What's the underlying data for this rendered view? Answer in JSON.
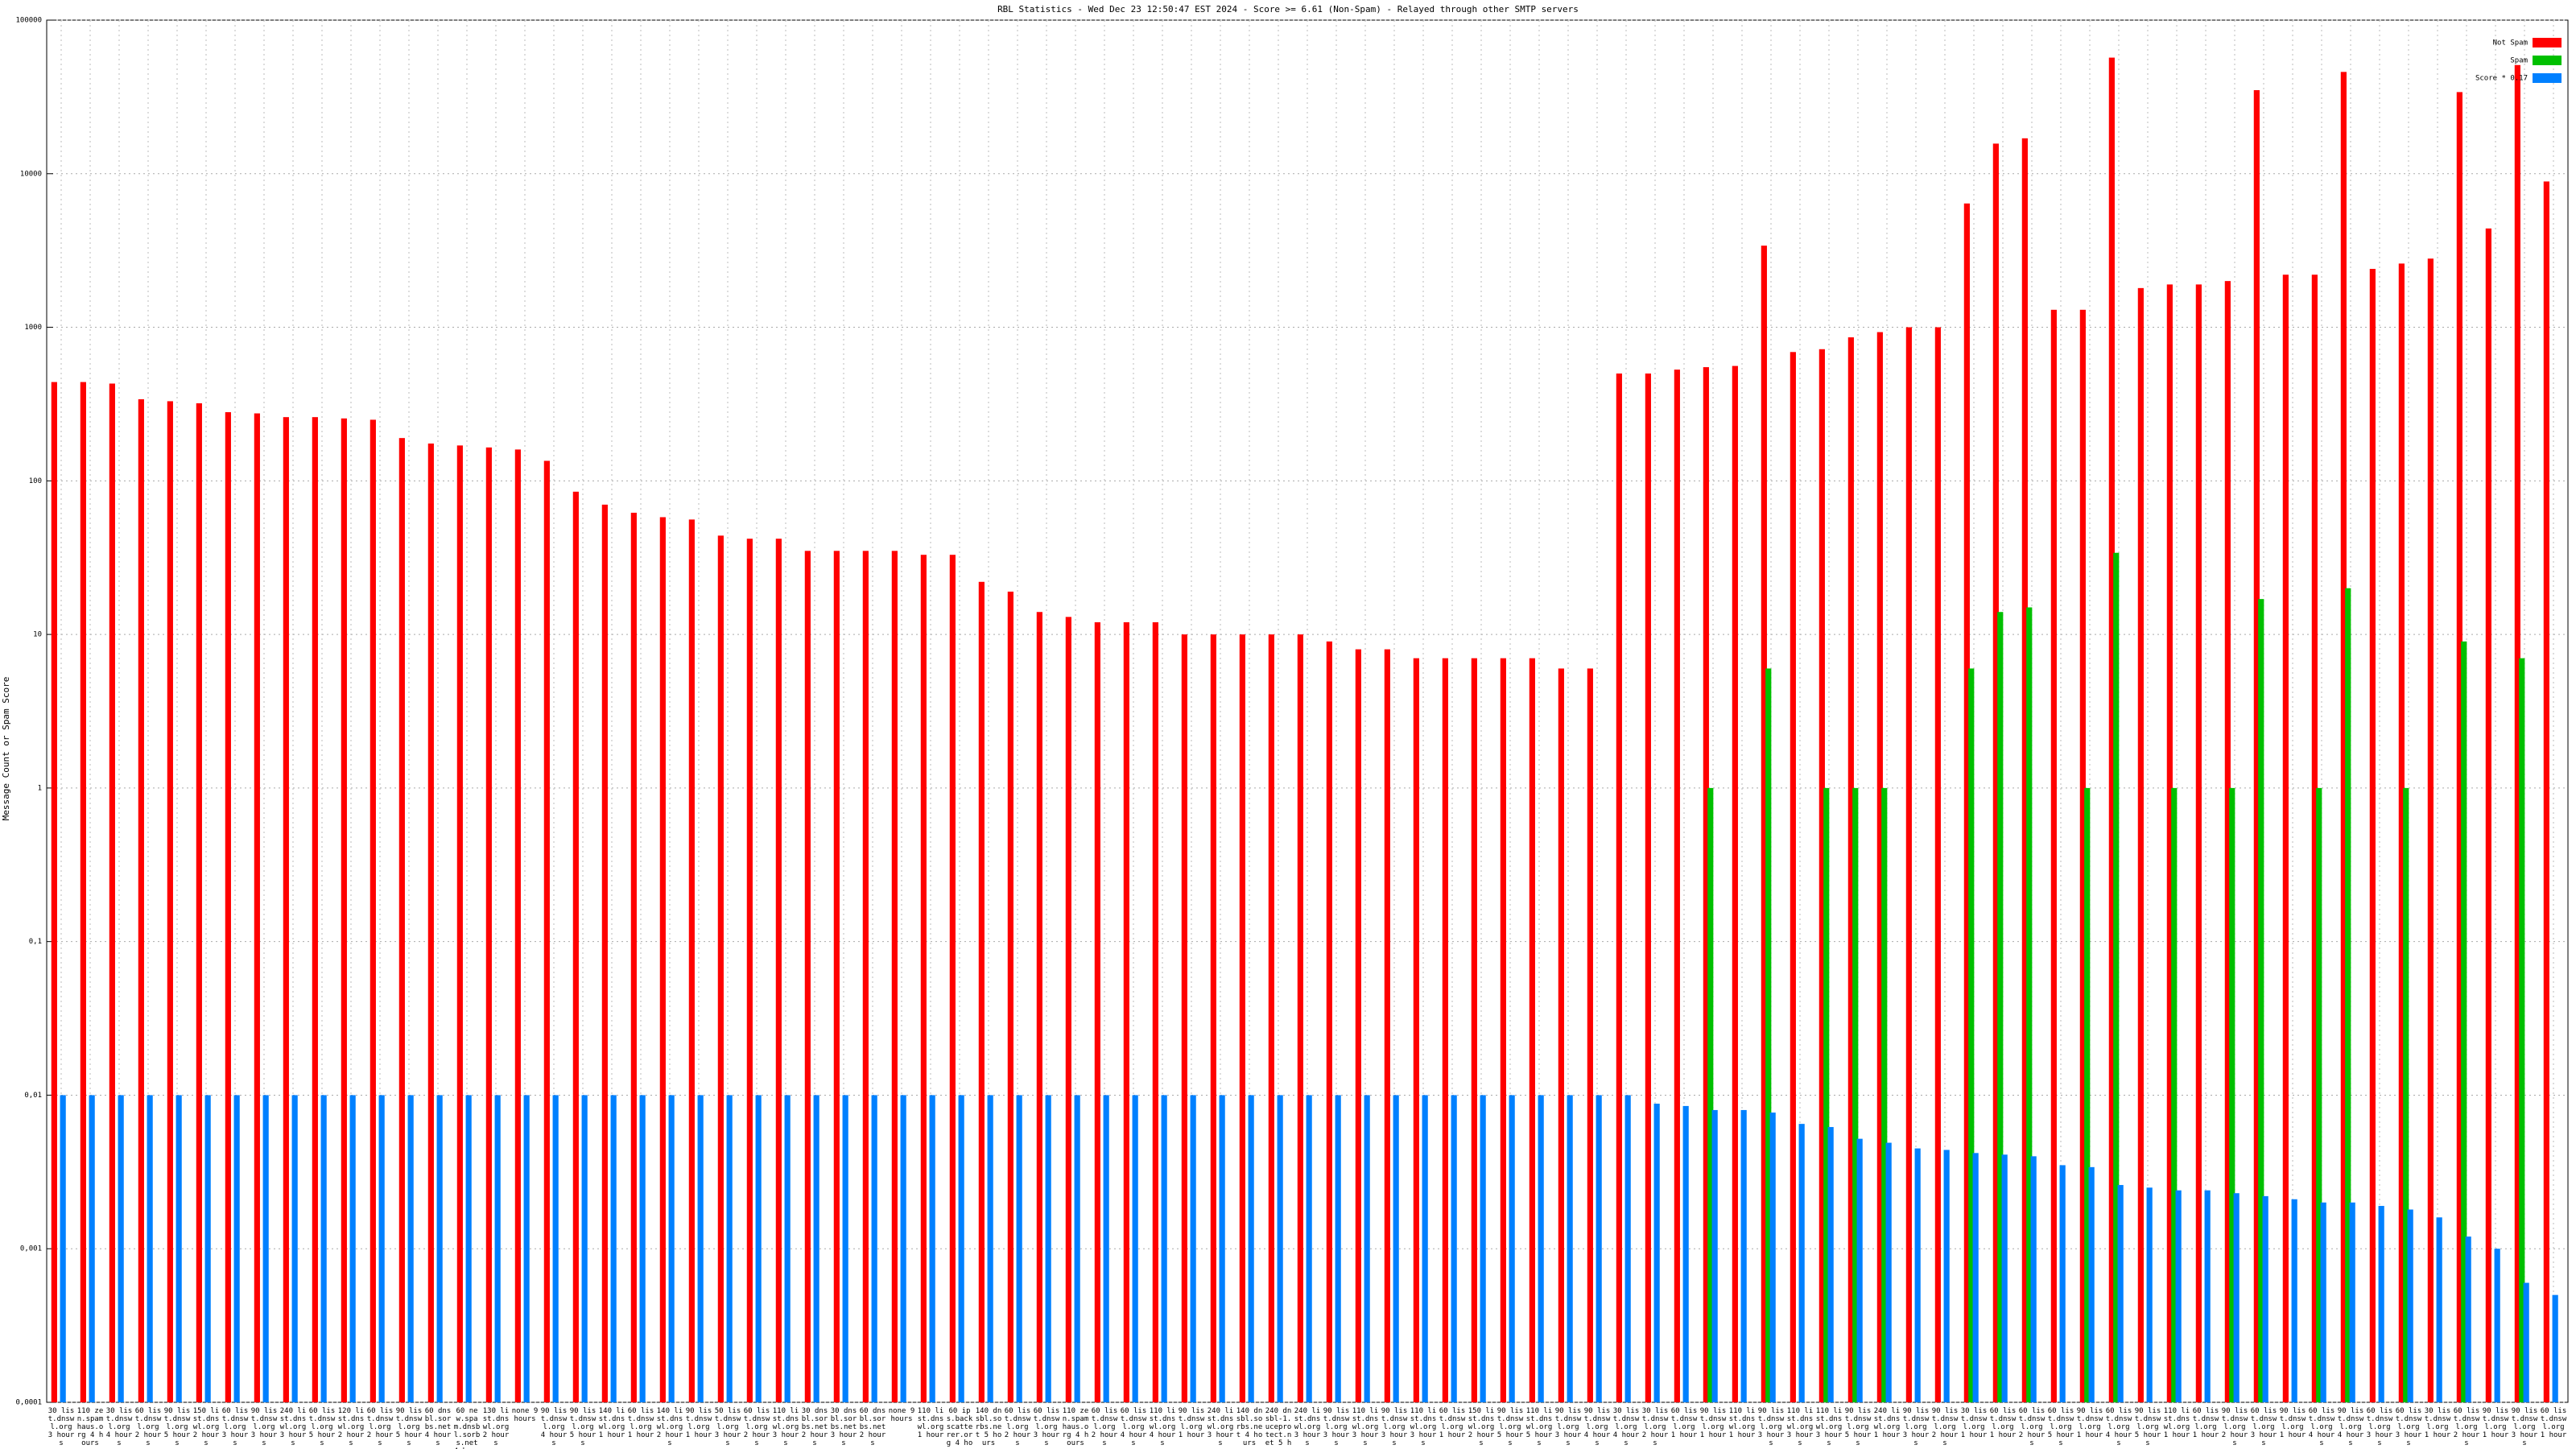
{
  "chart_data": {
    "type": "bar",
    "title": "RBL Statistics - Wed Dec 23 12:50:47 EST 2024 - Score >= 6.61 (Non-Spam) - Relayed through other SMTP servers",
    "y_label": "Message Count or Spam Score",
    "log_scale": true,
    "grid": true,
    "legend": "top-right",
    "ylim": [
      0.0001,
      100000
    ],
    "yticks": [
      {
        "value": 0.0001,
        "label": "0,0001"
      },
      {
        "value": 0.001,
        "label": "0,001"
      },
      {
        "value": 0.01,
        "label": "0,01"
      },
      {
        "value": 0.1,
        "label": "0,1"
      },
      1,
      10,
      100,
      1000,
      10000,
      100000
    ],
    "categories": [
      "30 list.dnswl.org 3 hours",
      "110 zen.spamhaus.org 4 hours",
      "30 list.dnswl.org 4 hours",
      "60 list.dnswl.org 2 hours",
      "90 list.dnswl.org 5 hours",
      "150 list.dnswl.org 2 hours",
      "60 list.dnswl.org 3 hours",
      "90 list.dnswl.org 3 hours",
      "240 list.dnswl.org 3 hours",
      "60 list.dnswl.org 5 hours",
      "120 list.dnswl.org 2 hours",
      "60 list.dnswl.org 2 hours",
      "90 list.dnswl.org 5 hours",
      "60 dnsbl.sorbs.net 4 hours",
      "60 new.spam.dnsbl.sorbs.net 4 hours",
      "130 list.dnswl.org 2 hours",
      "none 9 hours",
      "90 list.dnswl.org 4 hours",
      "90 list.dnswl.org 5 hours",
      "140 list.dnswl.org 1 hour",
      "60 list.dnswl.org 1 hour",
      "140 list.dnswl.org 2 hours",
      "90 list.dnswl.org 1 hour",
      "50 list.dnswl.org 3 hours",
      "60 list.dnswl.org 2 hours",
      "110 list.dnswl.org 3 hours",
      "30 dnsbl.sorbs.net 2 hours",
      "30 dnsbl.sorbs.net 3 hours",
      "60 dnsbl.sorbs.net 2 hours",
      "none 9 hours",
      "110 list.dnswl.org 1 hour",
      "60 ips.backscatterer.org 4 hours",
      "140 dnsbl.sorbs.net 5 hours",
      "60 list.dnswl.org 2 hours",
      "60 list.dnswl.org 3 hours",
      "110 zen.spamhaus.org 4 hours",
      "60 list.dnswl.org 2 hours",
      "60 list.dnswl.org 4 hours",
      "110 list.dnswl.org 4 hours",
      "90 list.dnswl.org 1 hour",
      "240 list.dnswl.org 3 hours",
      "140 dnsbl.sorbs.net 4 hours",
      "240 dnsbl-1.uceprotect.net 5 hours",
      "240 list.dnswl.org 3 hours",
      "90 list.dnswl.org 3 hours",
      "110 list.dnswl.org 3 hours",
      "90 list.dnswl.org 3 hours",
      "110 list.dnswl.org 3 hours",
      "60 list.dnswl.org 1 hour",
      "150 list.dnswl.org 2 hours",
      "90 list.dnswl.org 5 hours",
      "110 list.dnswl.org 5 hours",
      "90 list.dnswl.org 3 hours",
      "90 list.dnswl.org 4 hours",
      "30 list.dnswl.org 4 hours",
      "30 list.dnswl.org 2 hours",
      "60 list.dnswl.org 1 hour",
      "90 list.dnswl.org 1 hour",
      "110 list.dnswl.org 1 hour",
      "90 list.dnswl.org 3 hours",
      "110 list.dnswl.org 3 hours",
      "110 list.dnswl.org 3 hours",
      "90 list.dnswl.org 5 hours",
      "240 list.dnswl.org 1 hour",
      "90 list.dnswl.org 3 hours",
      "90 list.dnswl.org 2 hours",
      "30 list.dnswl.org 1 hour",
      "60 list.dnswl.org 1 hour",
      "60 list.dnswl.org 2 hours",
      "60 list.dnswl.org 5 hours",
      "90 list.dnswl.org 1 hour",
      "60 list.dnswl.org 4 hours",
      "90 list.dnswl.org 5 hours",
      "110 list.dnswl.org 1 hour",
      "60 list.dnswl.org 1 hour",
      "90 list.dnswl.org 2 hours",
      "60 list.dnswl.org 3 hours",
      "90 list.dnswl.org 1 hour",
      "60 list.dnswl.org 4 hours",
      "90 list.dnswl.org 4 hours",
      "60 list.dnswl.org 3 hours",
      "60 list.dnswl.org 3 hours",
      "30 list.dnswl.org 1 hour",
      "60 list.dnswl.org 2 hours",
      "90 list.dnswl.org 1 hour",
      "90 list.dnswl.org 3 hours",
      "60 list.dnswl.org 1 hour"
    ],
    "series": [
      {
        "name": "Not Spam",
        "color": "#ff0000",
        "values": [
          440,
          440,
          430,
          340,
          330,
          320,
          280,
          275,
          260,
          260,
          255,
          250,
          190,
          175,
          170,
          165,
          160,
          135,
          85,
          70,
          62,
          58,
          56,
          44,
          42,
          42,
          35,
          35,
          35,
          35,
          33,
          33,
          22,
          19,
          14,
          13,
          12,
          12,
          12,
          10,
          10,
          10,
          10,
          10,
          9,
          8,
          8,
          7,
          7,
          7,
          7,
          7,
          6,
          6,
          500,
          500,
          530,
          550,
          560,
          3400,
          690,
          720,
          860,
          930,
          1000,
          1000,
          6400,
          15700,
          17000,
          1300,
          1300,
          57000,
          1800,
          1900,
          1900,
          2000,
          35000,
          2200,
          2200,
          46000,
          2400,
          2600,
          2800,
          34000,
          4400,
          51000,
          8900
        ]
      },
      {
        "name": "Spam",
        "color": "#00c000",
        "values": [
          null,
          null,
          null,
          null,
          null,
          null,
          null,
          null,
          null,
          null,
          null,
          null,
          null,
          null,
          null,
          null,
          null,
          null,
          null,
          null,
          null,
          null,
          null,
          null,
          null,
          null,
          null,
          null,
          null,
          null,
          null,
          null,
          null,
          null,
          null,
          null,
          null,
          null,
          null,
          null,
          null,
          null,
          null,
          null,
          null,
          null,
          null,
          null,
          null,
          null,
          null,
          null,
          null,
          null,
          null,
          null,
          null,
          1,
          null,
          6,
          null,
          1,
          1,
          1,
          null,
          null,
          6,
          14,
          15,
          null,
          1,
          34,
          null,
          1,
          null,
          1,
          17,
          null,
          1,
          20,
          null,
          1,
          null,
          9,
          null,
          7,
          null
        ]
      },
      {
        "name": "Score * 0.17",
        "color": "#0080ff",
        "values": [
          0.01,
          0.01,
          0.01,
          0.01,
          0.01,
          0.01,
          0.01,
          0.01,
          0.01,
          0.01,
          0.01,
          0.01,
          0.01,
          0.01,
          0.01,
          0.01,
          0.01,
          0.01,
          0.01,
          0.01,
          0.01,
          0.01,
          0.01,
          0.01,
          0.01,
          0.01,
          0.01,
          0.01,
          0.01,
          0.01,
          0.01,
          0.01,
          0.01,
          0.01,
          0.01,
          0.01,
          0.01,
          0.01,
          0.01,
          0.01,
          0.01,
          0.01,
          0.01,
          0.01,
          0.01,
          0.01,
          0.01,
          0.01,
          0.01,
          0.01,
          0.01,
          0.01,
          0.01,
          0.01,
          0.01,
          0.0088,
          0.0085,
          0.008,
          0.008,
          0.0077,
          0.0065,
          0.0062,
          0.0052,
          0.0049,
          0.0045,
          0.0044,
          0.0042,
          0.0041,
          0.004,
          0.0035,
          0.0034,
          0.0026,
          0.0025,
          0.0024,
          0.0024,
          0.0023,
          0.0022,
          0.0021,
          0.002,
          0.002,
          0.0019,
          0.0018,
          0.0016,
          0.0012,
          0.001,
          0.0006,
          0.0005
        ]
      }
    ]
  }
}
